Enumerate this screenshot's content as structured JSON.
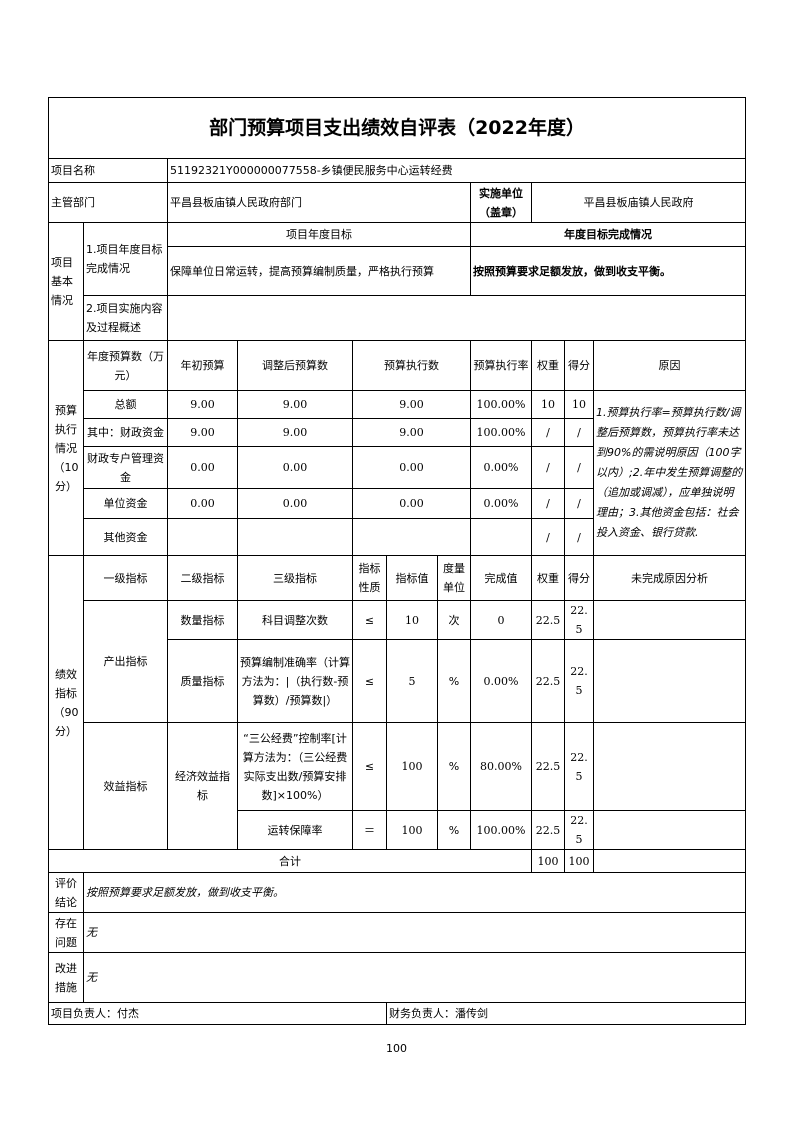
{
  "title": "部门预算项目支出绩效自评表（2022年度）",
  "project_name_label": "项目名称",
  "project_name": "51192321Y000000077558-乡镇便民服务中心运转经费",
  "dept_label": "主管部门",
  "dept": "平昌县板庙镇人民政府部门",
  "impl_label": "实施单位（盖章）",
  "impl": "平昌县板庙镇人民政府",
  "basic": {
    "label": "项目基本情况",
    "goal_label": "1.项目年度目标完成情况",
    "goal_head": "项目年度目标",
    "done_head": "年度目标完成情况",
    "goal": "保障单位日常运转，提高预算编制质量，严格执行预算",
    "done": "按照预算要求足额发放，做到收支平衡。",
    "process_label": "2.项目实施内容及过程概述",
    "process": ""
  },
  "budget": {
    "label": "预算执行情况（10分）",
    "headers": [
      "年度预算数（万元）",
      "年初预算",
      "调整后预算数",
      "预算执行数",
      "预算执行率",
      "权重",
      "得分",
      "原因"
    ],
    "rows": [
      [
        "总额",
        "9.00",
        "9.00",
        "9.00",
        "100.00%",
        "10",
        "10"
      ],
      [
        "其中：财政资金",
        "9.00",
        "9.00",
        "9.00",
        "100.00%",
        "/",
        "/"
      ],
      [
        "财政专户管理资金",
        "0.00",
        "0.00",
        "0.00",
        "0.00%",
        "/",
        "/"
      ],
      [
        "单位资金",
        "0.00",
        "0.00",
        "0.00",
        "0.00%",
        "/",
        "/"
      ],
      [
        "其他资金",
        "",
        "",
        "",
        "",
        "/",
        "/"
      ]
    ],
    "reason": "1.预算执行率=预算执行数/调整后预算数，预算执行率未达到90%的需说明原因（100字以内）;2.年中发生预算调整的（追加或调减），应单独说明理由；3.其他资金包括：社会投入资金、银行贷款."
  },
  "perf": {
    "label": "绩效指标（90分）",
    "headers": [
      "一级指标",
      "二级指标",
      "三级指标",
      "指标性质",
      "指标值",
      "度量单位",
      "完成值",
      "权重",
      "得分",
      "未完成原因分析"
    ],
    "level1": [
      "产出指标",
      "效益指标"
    ],
    "level2": [
      "数量指标",
      "质量指标",
      "经济效益指标"
    ],
    "rows": [
      [
        "科目调整次数",
        "≤",
        "10",
        "次",
        "0",
        "22.5",
        "22.5",
        ""
      ],
      [
        "预算编制准确率（计算方法为：|（执行数-预算数）/预算数|）",
        "≤",
        "5",
        "%",
        "0.00%",
        "22.5",
        "22.5",
        ""
      ],
      [
        "“三公经费”控制率[计算方法为：（三公经费实际支出数/预算安排数]×100%）",
        "≤",
        "100",
        "%",
        "80.00%",
        "22.5",
        "22.5",
        ""
      ],
      [
        "运转保障率",
        "＝",
        "100",
        "%",
        "100.00%",
        "22.5",
        "22.5",
        ""
      ]
    ],
    "total_label": "合计",
    "total_weight": "100",
    "total_score": "100"
  },
  "conclusion_label": "评价结论",
  "conclusion": "按照预算要求足额发放，做到收支平衡。",
  "problem_label": "存在问题",
  "problem": "无",
  "improve_label": "改进措施",
  "improve": "无",
  "leader": "项目负责人：付杰",
  "finance": "财务负责人：潘传剑",
  "page_number": "100"
}
